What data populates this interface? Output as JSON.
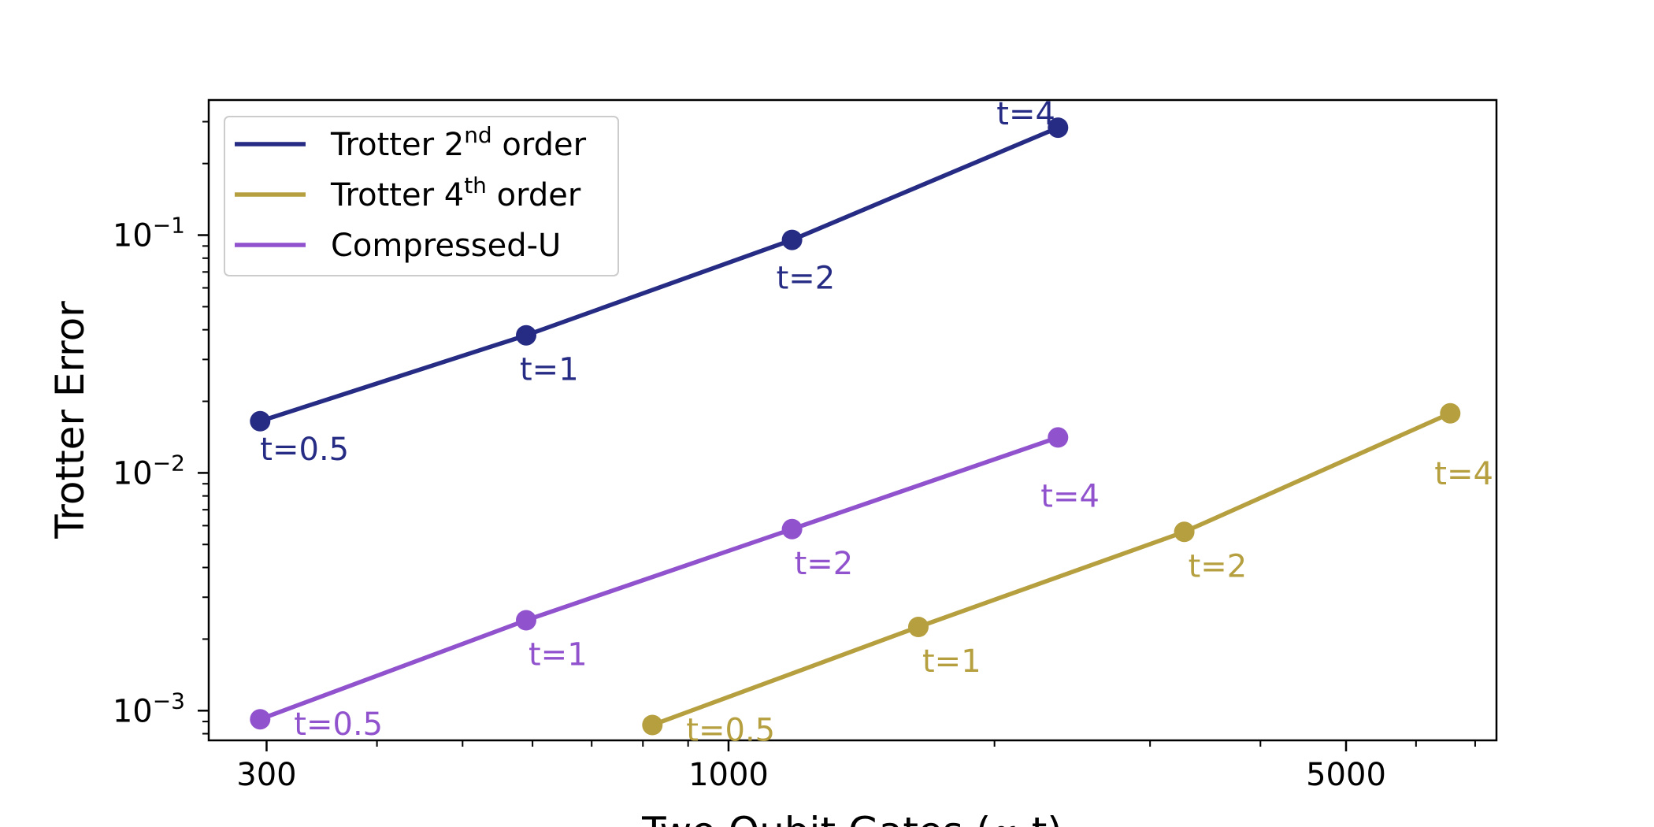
{
  "chart_data": {
    "type": "line",
    "xlabel": "Two Qubit Gates (∝ t)",
    "ylabel": "Trotter Error",
    "xscale": "log",
    "yscale": "log",
    "xlim": [
      258,
      7400
    ],
    "ylim": [
      0.00075,
      0.37
    ],
    "x_ticks": [
      {
        "value": 300,
        "label": "300"
      },
      {
        "value": 1000,
        "label": "1000"
      },
      {
        "value": 5000,
        "label": "5000"
      }
    ],
    "y_ticks": [
      {
        "value": 0.001,
        "base": "10",
        "exp": "−3"
      },
      {
        "value": 0.01,
        "base": "10",
        "exp": "−2"
      },
      {
        "value": 0.1,
        "base": "10",
        "exp": "−1"
      }
    ],
    "grid": false,
    "legend_position": "upper-left",
    "series": [
      {
        "name": "Trotter 2",
        "name_sup": "nd",
        "name_suffix": " order",
        "color": "#262b84",
        "points": [
          {
            "x": 295,
            "y": 0.0165,
            "label": "t=0.5"
          },
          {
            "x": 590,
            "y": 0.0379,
            "label": "t=1"
          },
          {
            "x": 1180,
            "y": 0.0955,
            "label": "t=2"
          },
          {
            "x": 2360,
            "y": 0.283,
            "label": "t=4"
          }
        ]
      },
      {
        "name": "Trotter 4",
        "name_sup": "th",
        "name_suffix": " order",
        "color": "#b59f3f",
        "points": [
          {
            "x": 820,
            "y": 0.00087,
            "label": "t=0.5"
          },
          {
            "x": 1640,
            "y": 0.00225,
            "label": "t=1"
          },
          {
            "x": 3280,
            "y": 0.00565,
            "label": "t=2"
          },
          {
            "x": 6560,
            "y": 0.0178,
            "label": "t=4"
          }
        ]
      },
      {
        "name": "Compressed-U",
        "name_sup": "",
        "name_suffix": "",
        "color": "#9152cd",
        "points": [
          {
            "x": 295,
            "y": 0.00092,
            "label": "t=0.5"
          },
          {
            "x": 590,
            "y": 0.0024,
            "label": "t=1"
          },
          {
            "x": 1180,
            "y": 0.0058,
            "label": "t=2"
          },
          {
            "x": 2360,
            "y": 0.0141,
            "label": "t=4"
          }
        ]
      }
    ]
  }
}
